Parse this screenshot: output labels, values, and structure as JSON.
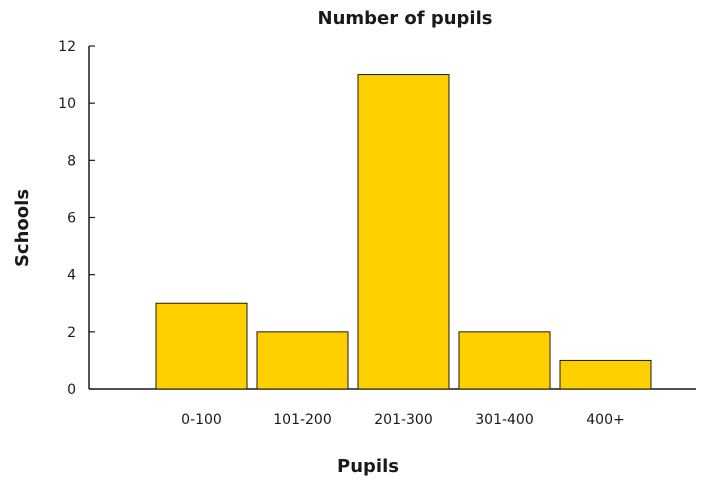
{
  "chart_data": {
    "type": "bar",
    "title": "Number of pupils",
    "xlabel": "Pupils",
    "ylabel": "Schools",
    "categories": [
      "0-100",
      "101-200",
      "201-300",
      "301-400",
      "400+"
    ],
    "values": [
      3,
      2,
      11,
      2,
      1
    ],
    "ylim": [
      0,
      12
    ],
    "yticks": [
      0,
      2,
      4,
      6,
      8,
      10,
      12
    ],
    "grid": false,
    "legend": "none",
    "colors": {
      "bar_fill": "#FFD000",
      "bar_stroke": "#1a1a1a",
      "axis": "#1a1a1a"
    }
  }
}
